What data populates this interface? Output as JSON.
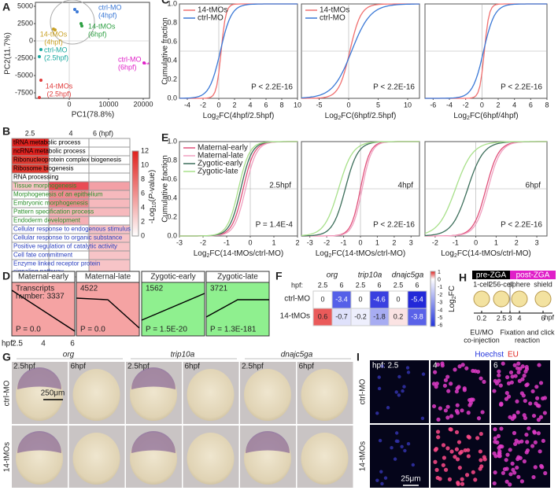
{
  "panel_a": {
    "letter": "A",
    "y_label": "PC2(11.7%)",
    "x_label": "PC1(78.8%)",
    "y_ticks": [
      5000,
      2500,
      0,
      -2500,
      -5000,
      -7500
    ],
    "x_ticks": [
      0,
      10000,
      20000
    ],
    "groups": [
      {
        "lines": [
          "ctrl-MO",
          "(4hpf)"
        ]
      },
      {
        "lines": [
          "14-tMOs",
          "(6hpf)"
        ]
      },
      {
        "lines": [
          "14-tMOs",
          "(4hpf)"
        ]
      },
      {
        "lines": [
          "ctrl-MO",
          "(2.5hpf)"
        ]
      },
      {
        "lines": [
          "ctrl-MO",
          "(6hpf)"
        ],
        "mark": "**"
      },
      {
        "lines": [
          "14-tMOs",
          "(2.5hpf)"
        ]
      }
    ]
  },
  "panel_b": {
    "letter": "B",
    "columns": [
      "2.5",
      "4",
      "6 (hpf)"
    ],
    "rows": [
      "tRNA metabolic process",
      "ncRNA metabolic process",
      "Ribonucleoprotein complex biogenesis",
      "Ribosome biogenesis",
      "RNA processing",
      "Tissue morphogenesis",
      "Morphogenesis of an epithelium",
      "Embryonic morphogenesis",
      "Pattern specification process",
      "Endoderm development",
      "Cellular response to endogenous stimulus",
      "Cellular response to organic substance",
      "Positive regulation of catalytic activity",
      "Cell fate commitment",
      [
        "Enzyme linked receptor protein",
        "signaling pathway"
      ]
    ],
    "colorbar_ticks": [
      12,
      10,
      8,
      6,
      4,
      2,
      0
    ],
    "colorbar_label": [
      "-Log",
      "10",
      "(",
      "P",
      "-value)"
    ]
  },
  "panel_c": {
    "letter": "C",
    "y_label": "Cumulative fraction",
    "y_ticks": [
      "1.0",
      "0.8",
      "0.6",
      "0.4",
      "0.2",
      "0.0"
    ],
    "legend": [
      "14-tMOs",
      "ctrl-MO"
    ],
    "plots": [
      {
        "x_ticks": [
          -4,
          -2,
          0,
          2,
          4,
          6,
          8,
          10
        ],
        "p": "P < 2.2E-16",
        "x_label": [
          "Log",
          "2",
          "FC(4hpf/2.5hpf)"
        ]
      },
      {
        "x_ticks": [
          -5,
          0,
          5,
          10
        ],
        "p": "P < 2.2E-16",
        "x_label": [
          "Log",
          "2",
          "FC(6hpf/2.5hpf)"
        ]
      },
      {
        "x_ticks": [
          -6,
          -4,
          -2,
          0,
          2,
          4,
          6,
          8
        ],
        "p": "P < 2.2E-16",
        "x_label": [
          "Log",
          "2",
          "FC(6hpf/4hpf)"
        ]
      }
    ]
  },
  "panel_e": {
    "letter": "E",
    "y_label": "Cumulative fraction",
    "y_ticks": [
      "1.0",
      "0.8",
      "0.6",
      "0.4",
      "0.2",
      "0.0"
    ],
    "legend": [
      "Maternal-early",
      "Maternal-late",
      "Zygotic-early",
      "Zygotic-late"
    ],
    "plots": [
      {
        "stage": "2.5hpf",
        "x_ticks": [
          -3,
          -2,
          -1,
          0,
          1,
          2
        ],
        "p": "P = 1.4E-4",
        "x_label": [
          "Log",
          "2",
          "FC(14-tMOs/ctrl-MO)"
        ]
      },
      {
        "stage": "4hpf",
        "x_ticks": [
          -3,
          -2,
          -1,
          0,
          1,
          2,
          3
        ],
        "p": "P < 2.2E-16",
        "x_label": [
          "Log",
          "2",
          "FC(14-tMOs/ctrl-MO)"
        ]
      },
      {
        "stage": "6hpf",
        "x_ticks": [
          -2,
          -1,
          0,
          1,
          2,
          3
        ],
        "p": "P < 2.2E-16",
        "x_label": [
          "Log",
          "2",
          "FC(14-tMOs/ctrl-MO)"
        ]
      }
    ]
  },
  "panel_d": {
    "letter": "D",
    "boxes": [
      {
        "title": "Maternal-early",
        "number": [
          "Transcripts",
          "number: 3337"
        ],
        "p": "P = 0.0"
      },
      {
        "title": "Maternal-late",
        "number": [
          "4522"
        ],
        "p": "P = 0.0"
      },
      {
        "title": "Zygotic-early",
        "number": [
          "1562"
        ],
        "p": "P = 1.5E-20"
      },
      {
        "title": "Zygotic-late",
        "number": [
          "3721"
        ],
        "p": "P = 1.3E-181"
      }
    ],
    "axis": [
      "hpf:",
      "2.5",
      "4",
      "6"
    ]
  },
  "panel_f": {
    "letter": "F",
    "genes": [
      "org",
      "trip10a",
      "dnajc5ga"
    ],
    "hpf_label": "hpf:",
    "hpf": [
      "2.5",
      "6"
    ],
    "rows": [
      "ctrl-MO",
      "14-tMOs"
    ],
    "values": [
      [
        "0",
        "-3.4",
        "0",
        "-4.6",
        "0",
        "-5.4"
      ],
      [
        "0.6",
        "-0.7",
        "-0.2",
        "-1.8",
        "0.2",
        "-3.8"
      ]
    ],
    "colorbar_ticks": [
      1,
      0,
      -1,
      -2,
      -3,
      -4,
      -5,
      -6
    ],
    "colorbar_label": [
      "Log",
      "2",
      "FC"
    ]
  },
  "panel_h": {
    "letter": "H",
    "phases": [
      "pre-ZGA",
      "post-ZGA"
    ],
    "stages": [
      "1-cell",
      "256-cell",
      "sphere",
      "shield"
    ],
    "times": [
      "0.2",
      "2.5",
      "3",
      "4",
      "6"
    ],
    "unit": "hpf",
    "step1": [
      "EU/MO",
      "co-injection"
    ],
    "step2": [
      "Fixation and click",
      "reaction"
    ]
  },
  "panel_g": {
    "letter": "G",
    "genes": [
      "org",
      "trip10a",
      "dnajc5ga"
    ],
    "stages": [
      "2.5hpf",
      "6hpf"
    ],
    "rows": [
      "ctrl-MO",
      "14-tMOs"
    ],
    "scale": "250μm"
  },
  "panel_i": {
    "letter": "I",
    "stains": [
      "Hoechst",
      "EU"
    ],
    "stages": [
      "hpf: 2.5",
      "4",
      "6"
    ],
    "rows": [
      "ctrl-MO",
      "14-tMOs"
    ],
    "scale": "25μm"
  }
}
